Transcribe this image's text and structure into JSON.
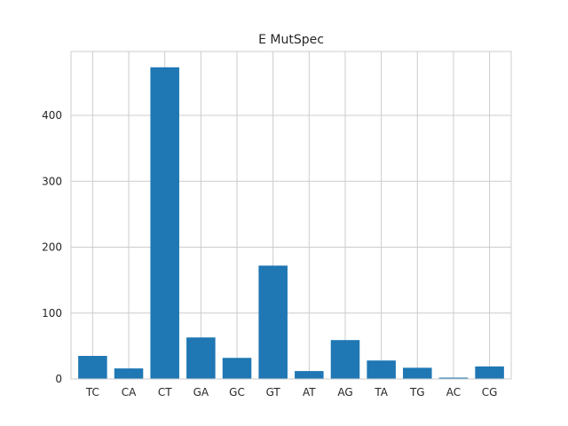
{
  "chart_data": {
    "type": "bar",
    "title": "E MutSpec",
    "xlabel": "",
    "ylabel": "",
    "categories": [
      "TC",
      "CA",
      "CT",
      "GA",
      "GC",
      "GT",
      "AT",
      "AG",
      "TA",
      "TG",
      "AC",
      "CG"
    ],
    "values": [
      35,
      16,
      473,
      63,
      32,
      172,
      12,
      59,
      28,
      17,
      2,
      19
    ],
    "ylim": [
      0,
      497
    ],
    "yticks": [
      0,
      100,
      200,
      300,
      400
    ],
    "grid": true,
    "bar_color": "#1f77b4"
  }
}
